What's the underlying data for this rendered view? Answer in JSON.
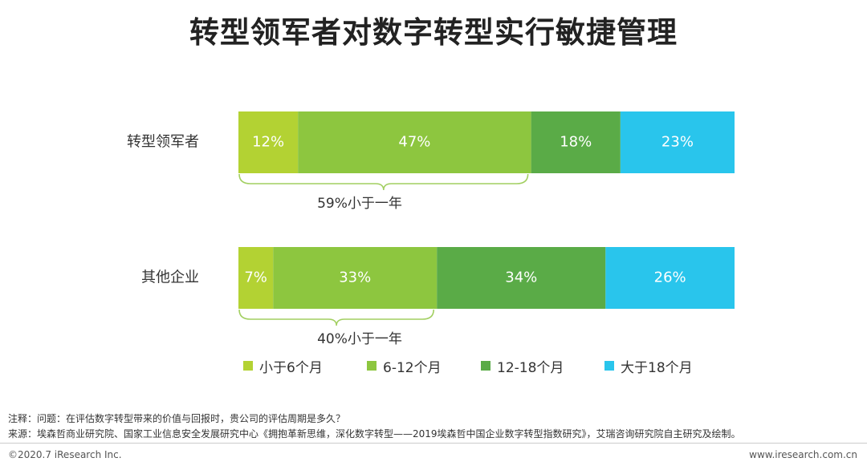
{
  "colors": {
    "lt6": "#b3d233",
    "m6_12": "#8dc63f",
    "m12_18": "#5aab47",
    "gt18": "#29c5ec",
    "brace": "#a2cf61"
  },
  "chart_data": {
    "type": "bar",
    "orientation": "horizontal",
    "stacked": true,
    "percent": true,
    "title": "转型领军者对数字转型实行敏捷管理",
    "categories": [
      "转型领军者",
      "其他企业"
    ],
    "series": [
      {
        "name": "小于6个月",
        "values": [
          12,
          7
        ]
      },
      {
        "name": "6-12个月",
        "values": [
          47,
          33
        ]
      },
      {
        "name": "12-18个月",
        "values": [
          18,
          34
        ]
      },
      {
        "name": "大于18个月",
        "values": [
          23,
          26
        ]
      }
    ],
    "value_labels": [
      [
        "12%",
        "47%",
        "18%",
        "23%"
      ],
      [
        "7%",
        "33%",
        "34%",
        "26%"
      ]
    ],
    "annotations": [
      "59%小于一年",
      "40%小于一年"
    ],
    "legend_position": "bottom"
  },
  "notes": {
    "note": "注释：问题：在评估数字转型带来的价值与回报时，贵公司的评估周期是多久？",
    "source": "来源：埃森哲商业研究院、国家工业信息安全发展研究中心《拥抱革新思维，深化数字转型——2019埃森哲中国企业数字转型指数研究》，艾瑞咨询研究院自主研究及绘制。"
  },
  "footer": {
    "copyright": "©2020.7 iResearch Inc.",
    "website": "www.iresearch.com.cn"
  }
}
